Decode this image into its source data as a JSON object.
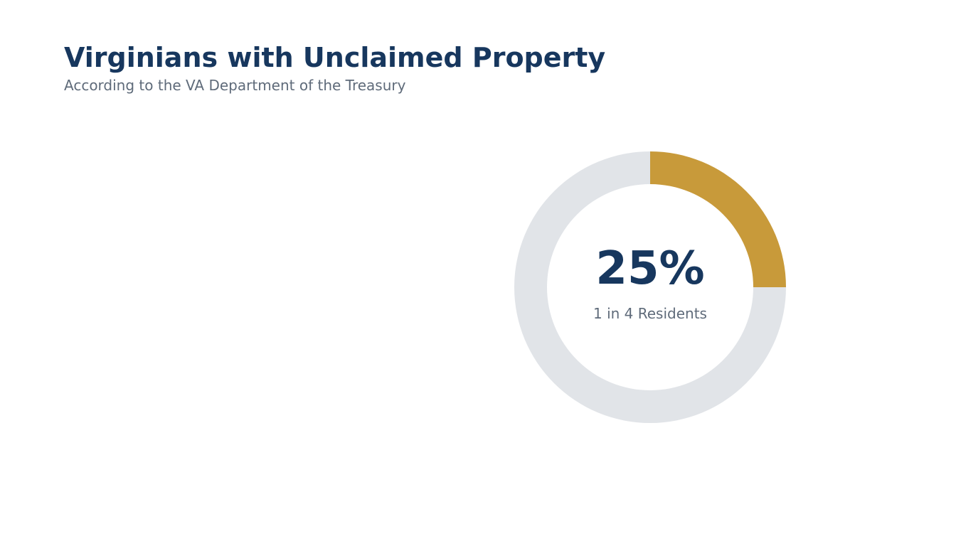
{
  "header": {
    "title": "Virginians with Unclaimed Property",
    "subtitle": "According to the VA Department of the Treasury"
  },
  "colors": {
    "highlight": "#c89a3a",
    "track": "#e1e4e8",
    "title": "#17375e",
    "muted": "#5f6b7a"
  },
  "chart_data": {
    "type": "pie",
    "style": "donut",
    "slices": [
      {
        "value": 25,
        "color": "#c89a3a"
      },
      {
        "value": 75,
        "color": "#e1e4e8"
      }
    ],
    "center_value": "25%",
    "center_label": "1 in 4 Residents",
    "legend": "none",
    "grid": false
  }
}
